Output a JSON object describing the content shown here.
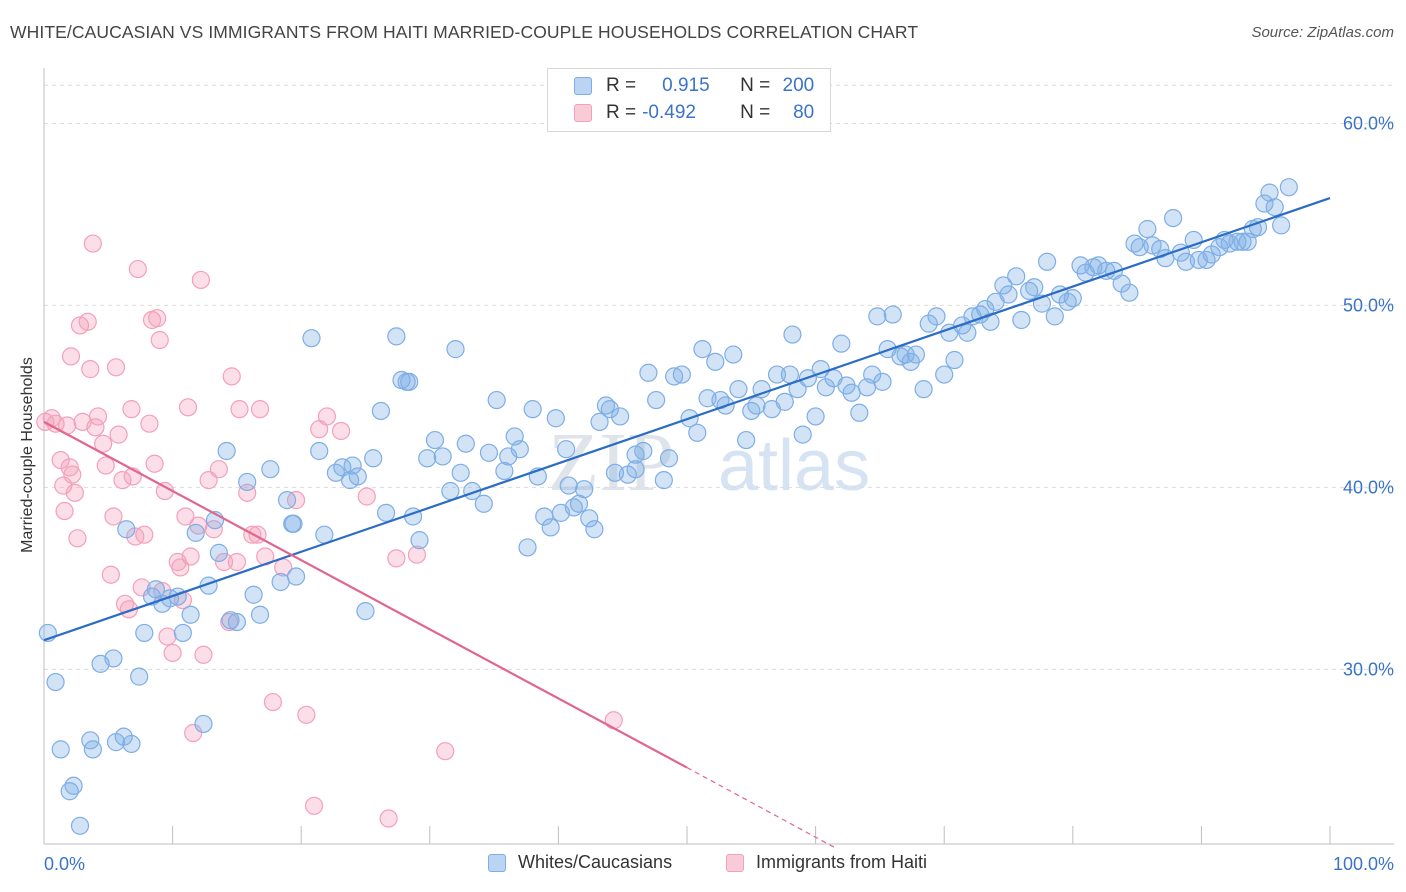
{
  "header": {
    "title": "WHITE/CAUCASIAN VS IMMIGRANTS FROM HAITI MARRIED-COUPLE HOUSEHOLDS CORRELATION CHART",
    "source": "Source: ZipAtlas.com"
  },
  "legend": {
    "r_label": "R =",
    "n_label": "N =",
    "rows": [
      {
        "r": "0.915",
        "n": "200"
      },
      {
        "r": "-0.492",
        "n": "80"
      }
    ]
  },
  "bottom_legend": {
    "series1": "Whites/Caucasians",
    "series2": "Immigrants from Haiti"
  },
  "watermark": {
    "zip": "ZIP",
    "atlas": "atlas"
  },
  "chart_data": {
    "type": "scatter",
    "title": "WHITE/CAUCASIAN VS IMMIGRANTS FROM HAITI MARRIED-COUPLE HOUSEHOLDS CORRELATION CHART",
    "xlabel": "",
    "ylabel": "Married-couple Households",
    "xlim": [
      0,
      100
    ],
    "ylim": [
      20.4,
      62.5
    ],
    "x_tick_labels": [
      "0.0%",
      "100.0%"
    ],
    "y_ticks": [
      30,
      40,
      50,
      60
    ],
    "y_tick_labels": [
      "30.0%",
      "40.0%",
      "50.0%",
      "60.0%"
    ],
    "grid": true,
    "colors": {
      "blue": "#7eaee6",
      "blue_line": "#2b6cc4",
      "pink": "#f4a0ba",
      "pink_line": "#e0668f",
      "tick_text": "#3b73c9"
    },
    "series": [
      {
        "name": "Whites/Caucasians",
        "r": 0.915,
        "n": 200,
        "trend": {
          "x": [
            0,
            100
          ],
          "y": [
            31.6,
            55.9
          ]
        },
        "points": [
          [
            0.3,
            32
          ],
          [
            0.9,
            29.3
          ],
          [
            1.3,
            25.6
          ],
          [
            2,
            23.3
          ],
          [
            2.3,
            23.6
          ],
          [
            2.8,
            21.4
          ],
          [
            3.6,
            26.1
          ],
          [
            3.8,
            25.6
          ],
          [
            4.4,
            30.3
          ],
          [
            5.4,
            30.6
          ],
          [
            5.6,
            26
          ],
          [
            6.2,
            26.3
          ],
          [
            6.4,
            37.7
          ],
          [
            6.8,
            25.9
          ],
          [
            7.4,
            29.6
          ],
          [
            7.8,
            32
          ],
          [
            8.4,
            34
          ],
          [
            8.7,
            34.4
          ],
          [
            9.2,
            33.6
          ],
          [
            9.8,
            33.9
          ],
          [
            10.4,
            34
          ],
          [
            10.8,
            32
          ],
          [
            11.4,
            33
          ],
          [
            11.8,
            37.5
          ],
          [
            12.4,
            27
          ],
          [
            12.8,
            34.6
          ],
          [
            13.3,
            38.2
          ],
          [
            13.6,
            36.4
          ],
          [
            14.2,
            42
          ],
          [
            14.5,
            32.7
          ],
          [
            15,
            32.6
          ],
          [
            15.8,
            40.3
          ],
          [
            16.3,
            34.1
          ],
          [
            16.8,
            33
          ],
          [
            17.6,
            41
          ],
          [
            18.4,
            34.8
          ],
          [
            18.9,
            39.3
          ],
          [
            19.3,
            38
          ],
          [
            19.6,
            35.1
          ],
          [
            20.8,
            48.2
          ],
          [
            21.4,
            42
          ],
          [
            21.8,
            37.4
          ],
          [
            22.7,
            40.8
          ],
          [
            23.2,
            41.1
          ],
          [
            23.8,
            40.4
          ],
          [
            24.4,
            40.6
          ],
          [
            25,
            33.2
          ],
          [
            25.6,
            41.6
          ],
          [
            26.2,
            44.2
          ],
          [
            26.6,
            38.6
          ],
          [
            27.4,
            48.3
          ],
          [
            27.8,
            45.9
          ],
          [
            28.2,
            45.8
          ],
          [
            28.7,
            38.4
          ],
          [
            29.2,
            37.1
          ],
          [
            29.8,
            41.6
          ],
          [
            30.4,
            42.6
          ],
          [
            31,
            41.7
          ],
          [
            31.6,
            39.8
          ],
          [
            32,
            47.6
          ],
          [
            32.4,
            40.8
          ],
          [
            32.8,
            42.4
          ],
          [
            33.3,
            39.8
          ],
          [
            34.2,
            39.1
          ],
          [
            34.6,
            41.9
          ],
          [
            35.2,
            44.8
          ],
          [
            35.8,
            40.9
          ],
          [
            36.6,
            42.8
          ],
          [
            37,
            42.1
          ],
          [
            37.6,
            36.7
          ],
          [
            38,
            44.3
          ],
          [
            38.4,
            40.6
          ],
          [
            38.9,
            38.4
          ],
          [
            39.4,
            37.8
          ],
          [
            39.8,
            43.8
          ],
          [
            40.2,
            38.6
          ],
          [
            40.6,
            42.1
          ],
          [
            41.2,
            38.9
          ],
          [
            41.6,
            39.1
          ],
          [
            42,
            39.9
          ],
          [
            42.4,
            38.3
          ],
          [
            42.8,
            37.7
          ],
          [
            43.2,
            43.6
          ],
          [
            43.7,
            44.5
          ],
          [
            44,
            44.3
          ],
          [
            44.4,
            40.8
          ],
          [
            44.8,
            43.9
          ],
          [
            45.4,
            40.7
          ],
          [
            46,
            41
          ],
          [
            46.6,
            42
          ],
          [
            47,
            46.3
          ],
          [
            47.6,
            44.8
          ],
          [
            48.2,
            40.4
          ],
          [
            48.6,
            41.6
          ],
          [
            49,
            46.1
          ],
          [
            49.6,
            46.2
          ],
          [
            50.2,
            43.8
          ],
          [
            50.8,
            43
          ],
          [
            51.2,
            47.6
          ],
          [
            51.6,
            44.9
          ],
          [
            52.2,
            46.9
          ],
          [
            52.6,
            44.8
          ],
          [
            53,
            44.5
          ],
          [
            53.6,
            47.3
          ],
          [
            54,
            45.4
          ],
          [
            54.6,
            42.6
          ],
          [
            55,
            44.2
          ],
          [
            55.4,
            44.5
          ],
          [
            55.8,
            45.4
          ],
          [
            56.6,
            44.3
          ],
          [
            57,
            46.2
          ],
          [
            57.6,
            44.7
          ],
          [
            58.2,
            48.4
          ],
          [
            58.6,
            45.4
          ],
          [
            59,
            42.9
          ],
          [
            59.4,
            46
          ],
          [
            60,
            43.9
          ],
          [
            60.4,
            46.5
          ],
          [
            60.8,
            45.5
          ],
          [
            61.4,
            46
          ],
          [
            62,
            47.9
          ],
          [
            62.4,
            45.6
          ],
          [
            62.8,
            45.2
          ],
          [
            63.4,
            44.1
          ],
          [
            64,
            45.5
          ],
          [
            64.4,
            46.2
          ],
          [
            64.8,
            49.4
          ],
          [
            65.2,
            45.8
          ],
          [
            65.6,
            47.6
          ],
          [
            66,
            49.5
          ],
          [
            66.6,
            47.2
          ],
          [
            67,
            47.3
          ],
          [
            67.4,
            46.9
          ],
          [
            67.8,
            47.3
          ],
          [
            68.4,
            45.4
          ],
          [
            68.8,
            49
          ],
          [
            69.4,
            49.4
          ],
          [
            70,
            46.2
          ],
          [
            70.4,
            48.5
          ],
          [
            70.8,
            47
          ],
          [
            71.4,
            48.9
          ],
          [
            71.8,
            48.5
          ],
          [
            72.2,
            49.4
          ],
          [
            72.8,
            49.5
          ],
          [
            73.2,
            49.8
          ],
          [
            73.6,
            49.1
          ],
          [
            74,
            50.2
          ],
          [
            74.6,
            51.1
          ],
          [
            75,
            50.6
          ],
          [
            75.6,
            51.6
          ],
          [
            76,
            49.2
          ],
          [
            76.6,
            50.8
          ],
          [
            77,
            51
          ],
          [
            77.6,
            50.1
          ],
          [
            78,
            52.4
          ],
          [
            78.6,
            49.4
          ],
          [
            79,
            50.6
          ],
          [
            79.6,
            50.2
          ],
          [
            80,
            50.4
          ],
          [
            80.6,
            52.2
          ],
          [
            81,
            51.8
          ],
          [
            81.6,
            52.1
          ],
          [
            82,
            52.2
          ],
          [
            82.6,
            51.9
          ],
          [
            83.2,
            51.9
          ],
          [
            83.8,
            51.2
          ],
          [
            84.4,
            50.7
          ],
          [
            84.8,
            53.4
          ],
          [
            85.2,
            53.2
          ],
          [
            85.8,
            54.2
          ],
          [
            86.2,
            53.3
          ],
          [
            86.8,
            53.1
          ],
          [
            87.2,
            52.6
          ],
          [
            87.8,
            54.8
          ],
          [
            88.4,
            52.9
          ],
          [
            88.8,
            52.4
          ],
          [
            89.4,
            53.6
          ],
          [
            89.8,
            52.5
          ],
          [
            90.4,
            52.5
          ],
          [
            90.8,
            52.8
          ],
          [
            91.4,
            53.2
          ],
          [
            91.8,
            53.6
          ],
          [
            92.2,
            53.4
          ],
          [
            92.8,
            53.5
          ],
          [
            93.2,
            53.5
          ],
          [
            93.6,
            53.5
          ],
          [
            94,
            54.2
          ],
          [
            94.4,
            54.3
          ],
          [
            94.9,
            55.6
          ],
          [
            95.3,
            56.2
          ],
          [
            95.7,
            55.4
          ],
          [
            96.2,
            54.4
          ],
          [
            96.8,
            56.5
          ],
          [
            58,
            46.2
          ],
          [
            46,
            41.8
          ],
          [
            40.8,
            40.1
          ],
          [
            28.4,
            45.8
          ],
          [
            24,
            41.2
          ],
          [
            19.4,
            38
          ],
          [
            36.1,
            41.7
          ]
        ]
      },
      {
        "name": "Immigrants from Haiti",
        "r": -0.492,
        "n": 80,
        "trend": {
          "x": [
            0,
            50
          ],
          "y": [
            43.6,
            24.6
          ]
        },
        "trend_dashed": {
          "x": [
            50,
            61.5
          ],
          "y": [
            24.6,
            20.2
          ]
        },
        "points": [
          [
            0.1,
            43.6
          ],
          [
            0.6,
            43.8
          ],
          [
            0.9,
            43.5
          ],
          [
            1.3,
            41.5
          ],
          [
            1.6,
            38.7
          ],
          [
            1.8,
            43.4
          ],
          [
            2,
            41.1
          ],
          [
            2.2,
            40.7
          ],
          [
            2.4,
            39.7
          ],
          [
            2.6,
            37.2
          ],
          [
            2.8,
            48.9
          ],
          [
            3,
            43.6
          ],
          [
            3.4,
            49.1
          ],
          [
            3.6,
            46.5
          ],
          [
            4,
            43.3
          ],
          [
            4.2,
            43.9
          ],
          [
            4.6,
            42.4
          ],
          [
            4.8,
            41.2
          ],
          [
            5.2,
            35.2
          ],
          [
            5.4,
            38.4
          ],
          [
            5.6,
            46.6
          ],
          [
            5.8,
            42.9
          ],
          [
            6.1,
            40.4
          ],
          [
            6.3,
            33.6
          ],
          [
            6.6,
            33.3
          ],
          [
            6.8,
            44.3
          ],
          [
            7.1,
            37.3
          ],
          [
            7.3,
            52
          ],
          [
            7.6,
            34.5
          ],
          [
            7.8,
            37.4
          ],
          [
            8.2,
            43.5
          ],
          [
            8.4,
            49.2
          ],
          [
            8.6,
            41.3
          ],
          [
            8.8,
            49.3
          ],
          [
            9,
            48.1
          ],
          [
            9.2,
            34.3
          ],
          [
            9.6,
            31.8
          ],
          [
            10,
            30.9
          ],
          [
            10.4,
            35.9
          ],
          [
            10.6,
            35.6
          ],
          [
            10.8,
            33.8
          ],
          [
            11,
            38.4
          ],
          [
            11.4,
            36.2
          ],
          [
            11.6,
            26.5
          ],
          [
            12,
            37.9
          ],
          [
            12.2,
            51.4
          ],
          [
            12.4,
            30.8
          ],
          [
            12.8,
            40.4
          ],
          [
            13.2,
            37.7
          ],
          [
            13.6,
            41
          ],
          [
            14,
            35.9
          ],
          [
            14.4,
            32.6
          ],
          [
            15,
            35.9
          ],
          [
            15.8,
            39.7
          ],
          [
            16.2,
            37.4
          ],
          [
            16.6,
            37.4
          ],
          [
            17.2,
            36.2
          ],
          [
            17.8,
            28.2
          ],
          [
            18.6,
            35.6
          ],
          [
            19.6,
            39.3
          ],
          [
            20.4,
            27.5
          ],
          [
            21,
            22.5
          ],
          [
            22,
            43.9
          ],
          [
            23.1,
            43.1
          ],
          [
            25.1,
            39.5
          ],
          [
            26.8,
            21.8
          ],
          [
            27.4,
            36.1
          ],
          [
            29,
            36.3
          ],
          [
            31.2,
            25.5
          ],
          [
            44.3,
            27.2
          ],
          [
            1.5,
            40.1
          ],
          [
            3.8,
            53.4
          ],
          [
            14.6,
            46.1
          ],
          [
            15.2,
            44.3
          ],
          [
            16.8,
            44.3
          ],
          [
            2.1,
            47.2
          ],
          [
            6.9,
            40.6
          ],
          [
            9.4,
            39.8
          ],
          [
            11.2,
            44.4
          ],
          [
            21.4,
            43.2
          ]
        ]
      }
    ]
  }
}
